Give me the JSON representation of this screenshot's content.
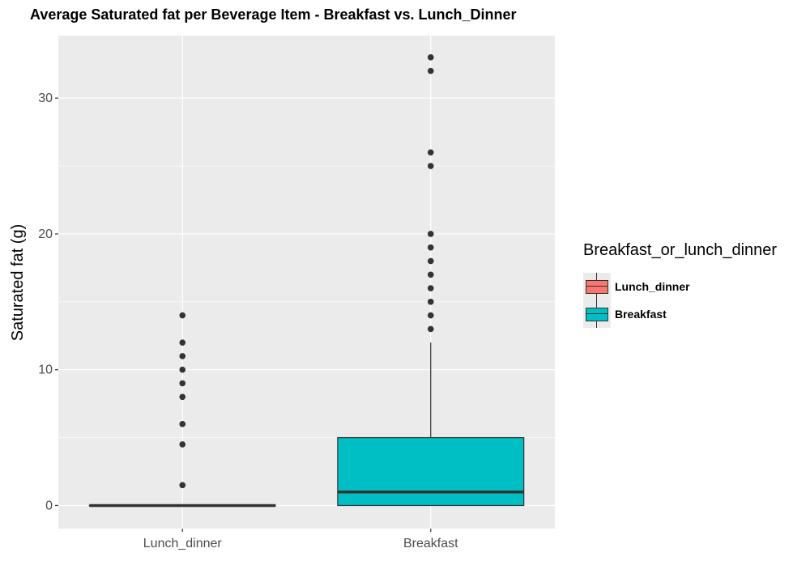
{
  "chart_data": {
    "type": "boxplot",
    "title": "Average Saturated fat per Beverage Item - Breakfast vs. Lunch_Dinner",
    "xlabel": "",
    "ylabel": "Saturated fat (g)",
    "ylim": [
      -1.7,
      34.6
    ],
    "yticks": [
      0,
      10,
      20,
      30
    ],
    "categories": [
      "Lunch_dinner",
      "Breakfast"
    ],
    "grid": true,
    "legend_position": "right",
    "legend_title": "Breakfast_or_lunch_dinner",
    "series": [
      {
        "name": "Lunch_dinner",
        "color": "#F8766D",
        "min": 0,
        "q1": 0,
        "median": 0,
        "q3": 0,
        "max": 0,
        "outliers": [
          1.5,
          4.5,
          6,
          8,
          9,
          10,
          11,
          12,
          14
        ]
      },
      {
        "name": "Breakfast",
        "color": "#00BFC4",
        "min": 0,
        "q1": 0,
        "median": 1,
        "q3": 5,
        "max": 12,
        "outliers": [
          13,
          14,
          15,
          16,
          17,
          18,
          19,
          20,
          25,
          26,
          32,
          33
        ]
      }
    ]
  }
}
